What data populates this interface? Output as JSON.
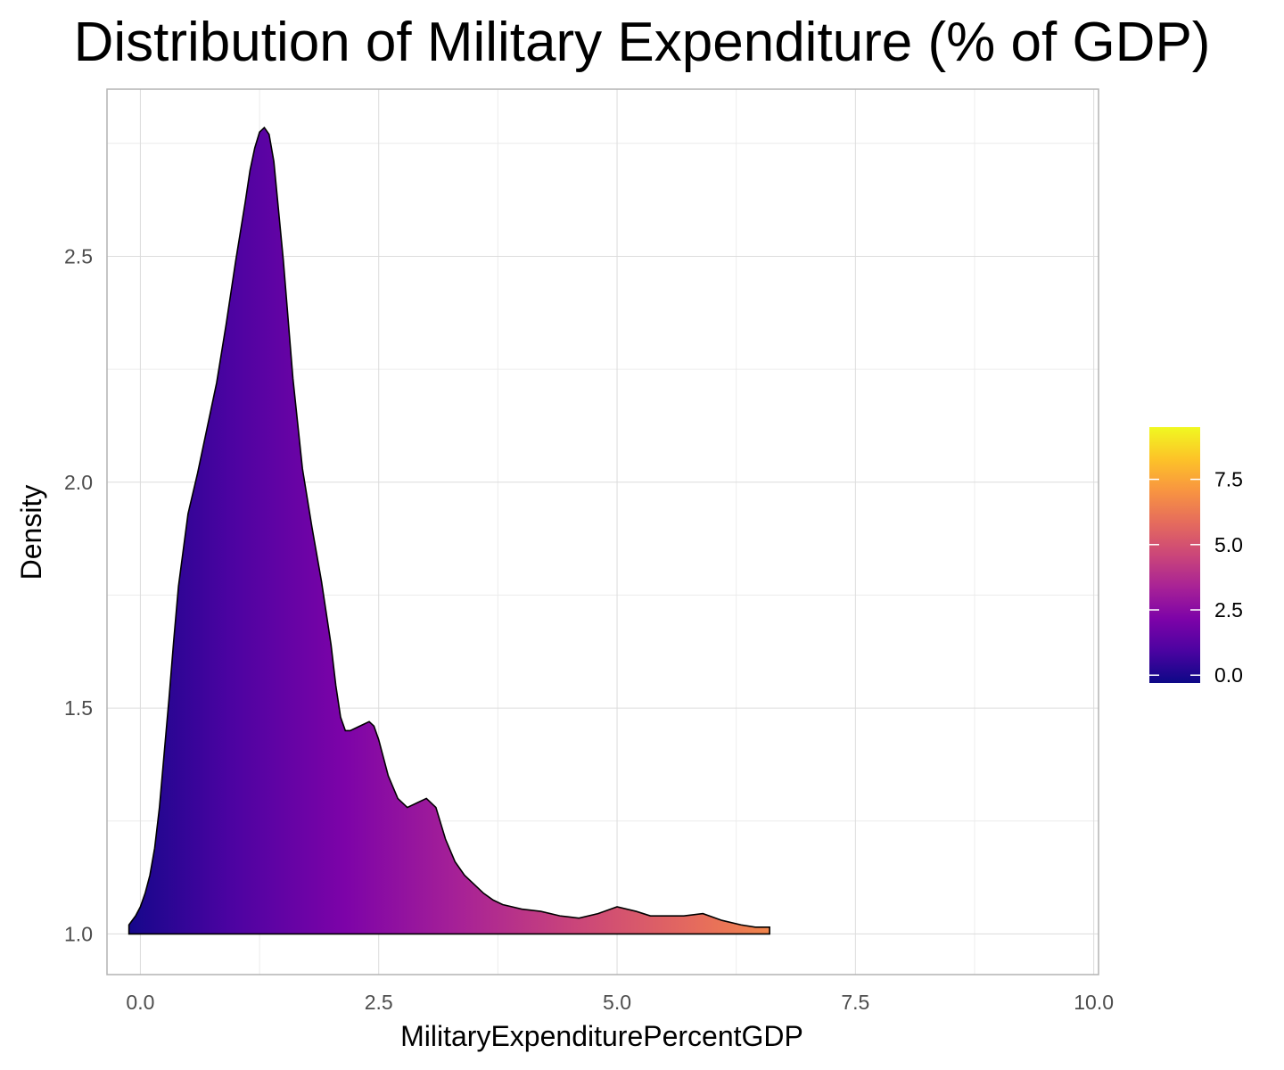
{
  "chart_data": {
    "type": "area",
    "subtype": "density",
    "title": "Distribution of Military Expenditure (% of GDP)",
    "xlabel": "MilitaryExpenditurePercentGDP",
    "ylabel": "Density",
    "xlim": [
      -0.35,
      10.05
    ],
    "ylim": [
      0.91,
      2.87
    ],
    "x_ticks": [
      0.0,
      2.5,
      5.0,
      7.5,
      10.0
    ],
    "x_tick_labels": [
      "0.0",
      "2.5",
      "5.0",
      "7.5",
      "10.0"
    ],
    "y_ticks": [
      1.0,
      1.5,
      2.0,
      2.5
    ],
    "y_tick_labels": [
      "1.0",
      "1.5",
      "2.0",
      "2.5"
    ],
    "grid": true,
    "baseline": 1.0,
    "x": [
      -0.12,
      -0.05,
      0.0,
      0.05,
      0.1,
      0.15,
      0.2,
      0.25,
      0.3,
      0.35,
      0.4,
      0.5,
      0.6,
      0.7,
      0.8,
      0.9,
      1.0,
      1.1,
      1.15,
      1.2,
      1.25,
      1.3,
      1.35,
      1.4,
      1.5,
      1.6,
      1.7,
      1.8,
      1.9,
      2.0,
      2.05,
      2.1,
      2.15,
      2.2,
      2.3,
      2.4,
      2.45,
      2.5,
      2.55,
      2.6,
      2.7,
      2.8,
      2.9,
      3.0,
      3.1,
      3.2,
      3.3,
      3.4,
      3.5,
      3.6,
      3.7,
      3.8,
      3.9,
      4.0,
      4.2,
      4.4,
      4.6,
      4.8,
      5.0,
      5.2,
      5.35,
      5.5,
      5.7,
      5.9,
      6.1,
      6.3,
      6.45,
      6.6
    ],
    "y": [
      1.02,
      1.04,
      1.06,
      1.09,
      1.13,
      1.19,
      1.28,
      1.4,
      1.52,
      1.65,
      1.77,
      1.93,
      2.02,
      2.12,
      2.22,
      2.35,
      2.49,
      2.62,
      2.69,
      2.74,
      2.775,
      2.785,
      2.77,
      2.71,
      2.49,
      2.23,
      2.03,
      1.9,
      1.78,
      1.64,
      1.55,
      1.48,
      1.45,
      1.45,
      1.46,
      1.47,
      1.46,
      1.43,
      1.39,
      1.35,
      1.3,
      1.28,
      1.29,
      1.3,
      1.28,
      1.21,
      1.16,
      1.13,
      1.11,
      1.09,
      1.075,
      1.065,
      1.06,
      1.055,
      1.05,
      1.04,
      1.035,
      1.045,
      1.06,
      1.05,
      1.04,
      1.04,
      1.04,
      1.045,
      1.03,
      1.02,
      1.015,
      1.015
    ],
    "colorbar": {
      "scale": "plasma",
      "limits": [
        -0.3,
        9.5
      ],
      "ticks": [
        0.0,
        2.5,
        5.0,
        7.5
      ],
      "tick_labels": [
        "0.0",
        "2.5",
        "5.0",
        "7.5"
      ]
    }
  }
}
